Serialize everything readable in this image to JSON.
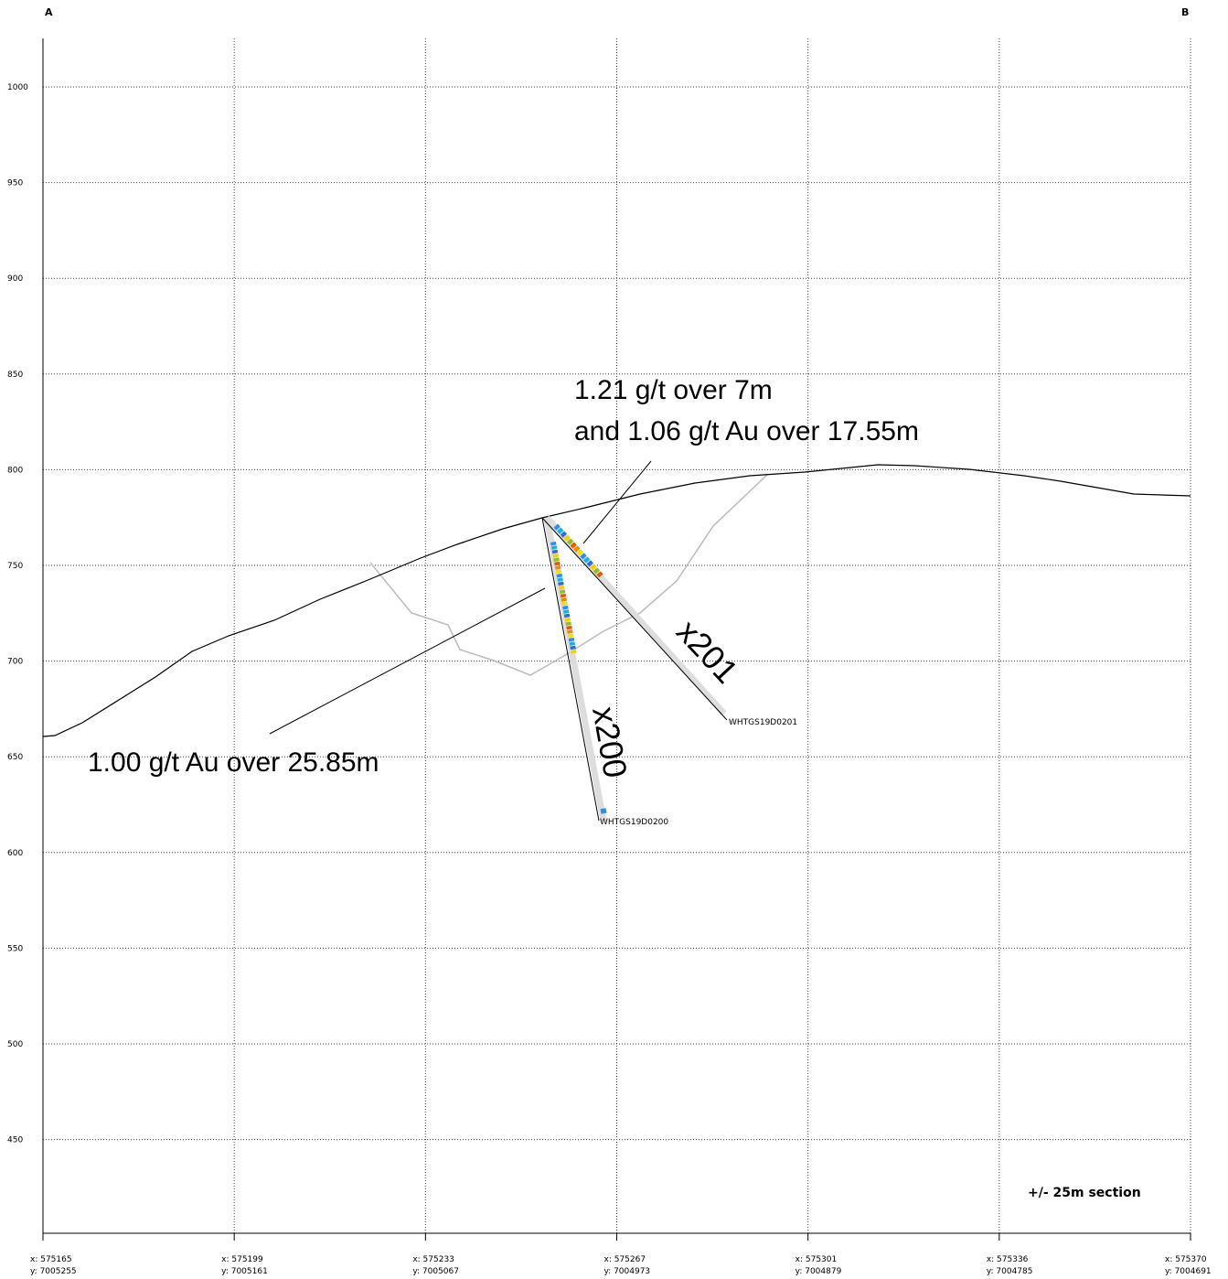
{
  "corners": {
    "left": "A",
    "right": "B"
  },
  "y_axis": {
    "ticks": [
      "1000",
      "950",
      "900",
      "850",
      "800",
      "750",
      "700",
      "650",
      "600",
      "550",
      "500",
      "450"
    ]
  },
  "x_axis": {
    "ticks": [
      {
        "x": "x: 575165",
        "y": "y: 7005255"
      },
      {
        "x": "x: 575199",
        "y": "y: 7005161"
      },
      {
        "x": "x: 575233",
        "y": "y: 7005067"
      },
      {
        "x": "x: 575267",
        "y": "y: 7004973"
      },
      {
        "x": "x: 575301",
        "y": "y: 7004879"
      },
      {
        "x": "x: 575336",
        "y": "y: 7004785"
      },
      {
        "x": "x: 575370",
        "y": "y: 7004691"
      }
    ]
  },
  "annotations": {
    "x201_line1": "1.21 g/t over 7m",
    "x201_line2": "and 1.06 g/t Au over 17.55m",
    "x200": "1.00 g/t Au over 25.85m"
  },
  "holes": {
    "x201_short": "x201",
    "x201_id": "WHTGS19D0201",
    "x200_short": "x200",
    "x200_id": "WHTGS19D0200"
  },
  "section_note": "+/- 25m section"
}
